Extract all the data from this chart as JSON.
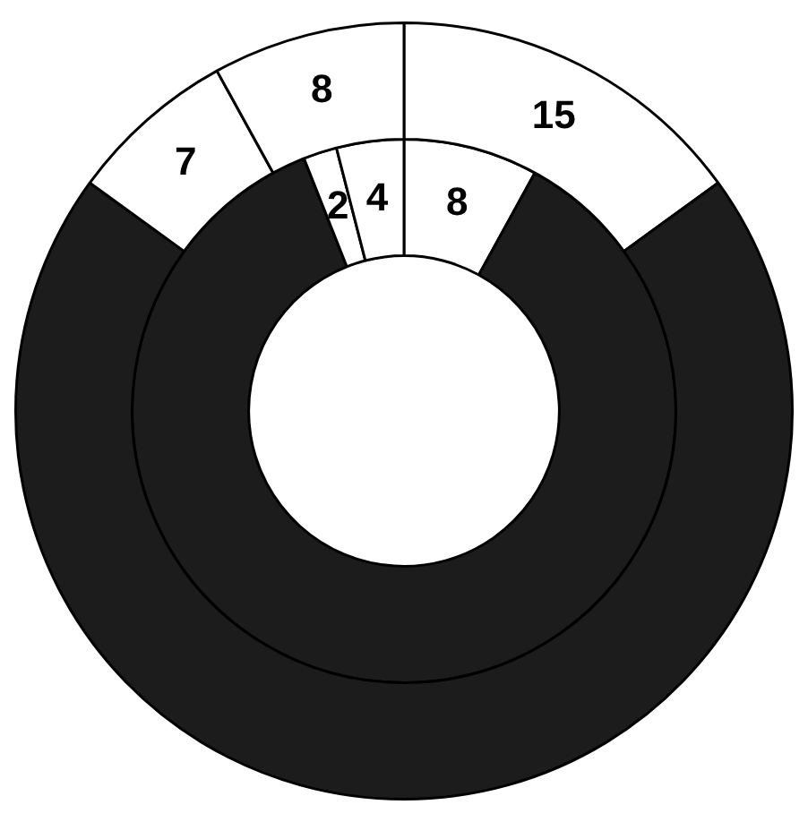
{
  "chart_data": {
    "type": "donut",
    "categories": [
      null,
      null,
      null,
      null
    ],
    "legend": false,
    "series": [
      {
        "colors": [
          "#ffffff",
          "#1c1c1c",
          "#ffffff",
          "#ffffff"
        ],
        "values": [
          15,
          70,
          7,
          8
        ],
        "value_labels": [
          "15",
          null,
          "7",
          "8"
        ]
      },
      {
        "colors": [
          "#ffffff",
          "#1c1c1c",
          "#ffffff",
          "#ffffff"
        ],
        "values": [
          8,
          86,
          2,
          4
        ],
        "value_labels": [
          "8",
          null,
          "2",
          "4"
        ]
      }
    ]
  }
}
